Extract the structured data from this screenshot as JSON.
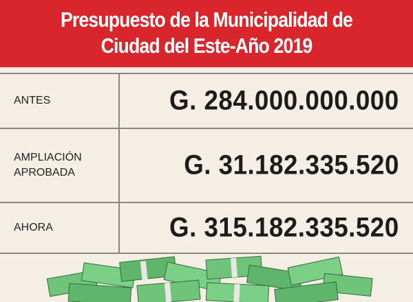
{
  "header": {
    "title_lines": [
      "Presupuesto de la Municipalidad de",
      "Ciudad del Este-Año 2019"
    ]
  },
  "table": {
    "rows": [
      [
        "ANTES",
        "G. 284.000.000.000"
      ],
      [
        "AMPLIACIÓN APROBADA",
        "G. 31.182.335.520"
      ],
      [
        "AHORA",
        "G. 315.182.335.520"
      ]
    ]
  }
}
